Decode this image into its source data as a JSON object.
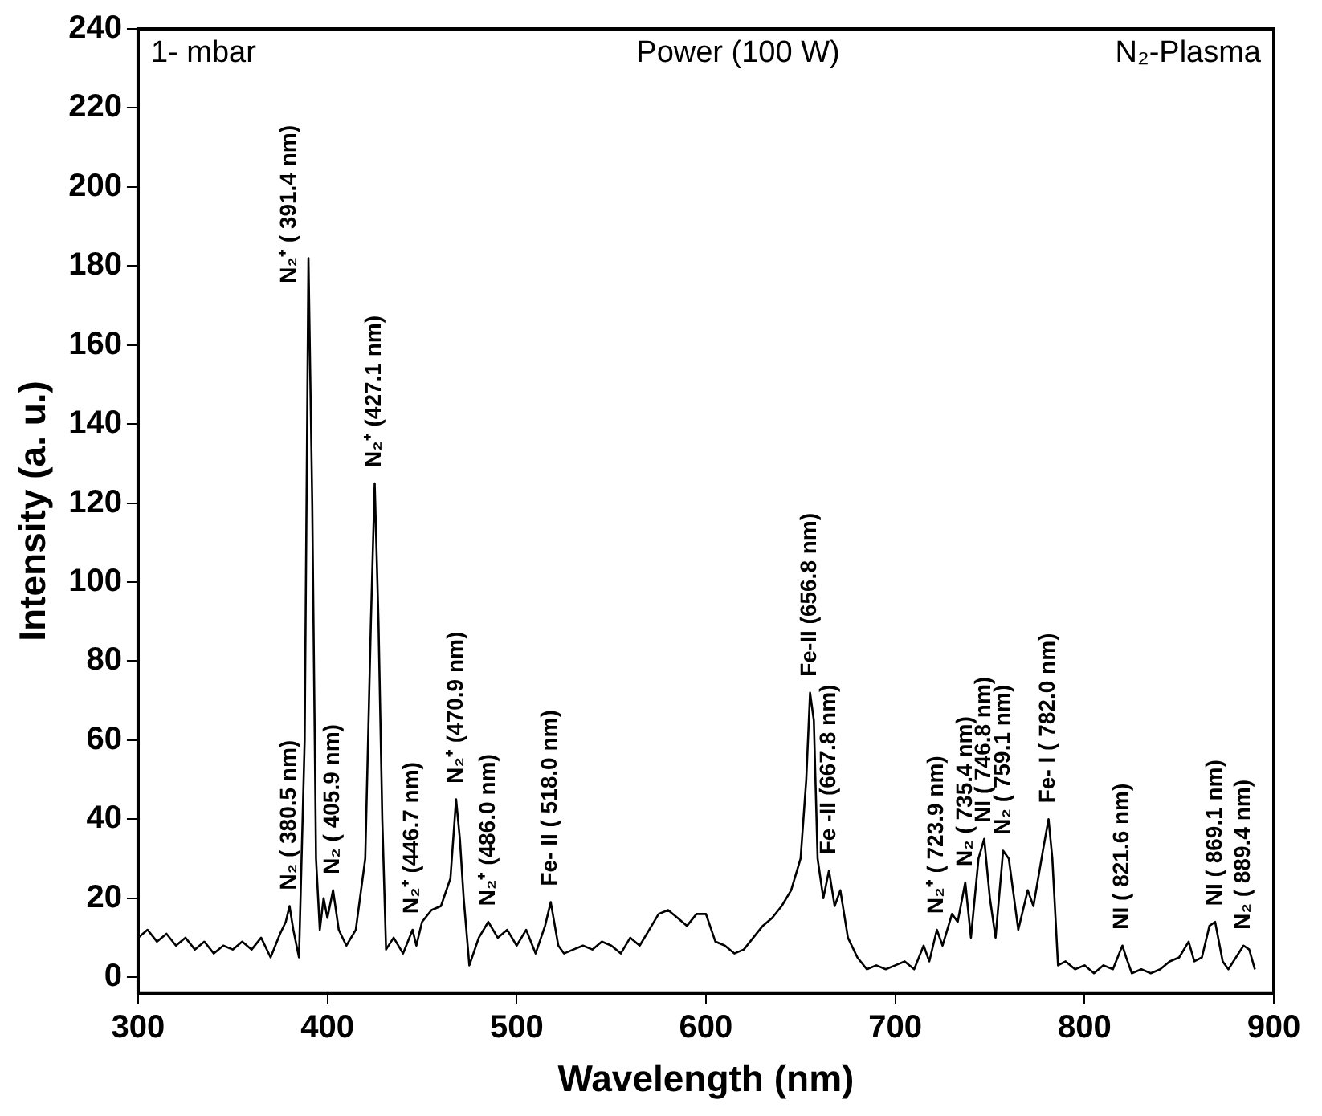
{
  "chart_data": {
    "type": "line",
    "xlabel": "Wavelength (nm)",
    "ylabel": "Intensity (a. u.)",
    "x": [
      300,
      305,
      310,
      315,
      320,
      325,
      330,
      335,
      340,
      345,
      350,
      355,
      360,
      365,
      370,
      375,
      378,
      380,
      382,
      385,
      388,
      390,
      392,
      394,
      396,
      398,
      400,
      403,
      406,
      410,
      415,
      420,
      423,
      425,
      427,
      429,
      431,
      435,
      440,
      445,
      447,
      450,
      455,
      460,
      465,
      468,
      470,
      472,
      475,
      480,
      485,
      490,
      495,
      500,
      505,
      510,
      515,
      518,
      522,
      525,
      530,
      535,
      540,
      545,
      550,
      555,
      560,
      565,
      570,
      575,
      580,
      585,
      590,
      595,
      600,
      605,
      610,
      615,
      620,
      625,
      630,
      635,
      640,
      645,
      650,
      653,
      655,
      657,
      659,
      662,
      665,
      668,
      671,
      675,
      680,
      685,
      690,
      695,
      700,
      705,
      710,
      715,
      718,
      722,
      725,
      730,
      733,
      737,
      740,
      744,
      747,
      750,
      753,
      757,
      760,
      765,
      770,
      773,
      778,
      781,
      783,
      786,
      790,
      795,
      800,
      805,
      810,
      815,
      820,
      822,
      825,
      830,
      835,
      840,
      845,
      850,
      855,
      858,
      862,
      866,
      869,
      873,
      876,
      880,
      884,
      887,
      890
    ],
    "series": [
      {
        "color": "#000000",
        "values": [
          10,
          12,
          9,
          11,
          8,
          10,
          7,
          9,
          6,
          8,
          7,
          9,
          7,
          10,
          5,
          11,
          14,
          18,
          12,
          5,
          60,
          182,
          120,
          30,
          12,
          20,
          15,
          22,
          12,
          8,
          12,
          30,
          90,
          125,
          90,
          40,
          7,
          10,
          6,
          12,
          8,
          14,
          17,
          18,
          25,
          45,
          35,
          20,
          3,
          10,
          14,
          10,
          12,
          8,
          12,
          6,
          13,
          19,
          8,
          6,
          7,
          8,
          7,
          9,
          8,
          6,
          10,
          8,
          12,
          16,
          17,
          15,
          13,
          16,
          16,
          9,
          8,
          6,
          7,
          10,
          13,
          15,
          18,
          22,
          30,
          50,
          72,
          65,
          30,
          20,
          27,
          18,
          22,
          10,
          5,
          2,
          3,
          2,
          3,
          4,
          2,
          8,
          4,
          12,
          8,
          16,
          14,
          24,
          10,
          30,
          35,
          20,
          10,
          32,
          30,
          12,
          22,
          18,
          32,
          40,
          30,
          3,
          4,
          2,
          3,
          1,
          3,
          2,
          8,
          5,
          1,
          2,
          1,
          2,
          4,
          5,
          9,
          4,
          5,
          13,
          14,
          4,
          2,
          5,
          8,
          7,
          2
        ]
      }
    ],
    "xlim": [
      300,
      900
    ],
    "xticks": [
      300,
      400,
      500,
      600,
      700,
      800,
      900
    ],
    "ylim": [
      -4,
      240
    ],
    "yticks": [
      0,
      20,
      40,
      60,
      80,
      100,
      120,
      140,
      160,
      180,
      200,
      220,
      240
    ],
    "annotations": [
      "1- mbar",
      "Power (100 W)",
      "N₂-Plasma",
      {
        "text": "N₂ ( 380.5 nm)",
        "x": 380,
        "y": 18
      },
      {
        "text": "N₂⁺ ( 391.4 nm)",
        "x": 390,
        "y": 182
      },
      {
        "text": "N₂ ( 405.9 nm)",
        "x": 403,
        "y": 22
      },
      {
        "text": "N₂⁺ (427.1 nm)",
        "x": 425,
        "y": 125
      },
      {
        "text": "N₂⁺ (446.7 nm)",
        "x": 445,
        "y": 12
      },
      {
        "text": "N₂⁺ (470.9 nm)",
        "x": 468,
        "y": 45
      },
      {
        "text": "N₂⁺ (486.0 nm)",
        "x": 485,
        "y": 14
      },
      {
        "text": "Fe- II ( 518.0 nm)",
        "x": 518,
        "y": 19
      },
      {
        "text": "Fe-II (656.8 nm)",
        "x": 655,
        "y": 72
      },
      {
        "text": "Fe -II (667.8 nm)",
        "x": 665,
        "y": 27
      },
      {
        "text": "N₂⁺ ( 723.9 nm)",
        "x": 722,
        "y": 12
      },
      {
        "text": "N₂ ( 735.4 nm)",
        "x": 737,
        "y": 24
      },
      {
        "text": "NI ( 746.8 nm)",
        "x": 747,
        "y": 35
      },
      {
        "text": "N₂ ( 759.1 nm)",
        "x": 757,
        "y": 32
      },
      {
        "text": "Fe- I ( 782.0 nm)",
        "x": 781,
        "y": 40
      },
      {
        "text": "NI ( 821.6 nm)",
        "x": 820,
        "y": 8
      },
      {
        "text": "NI ( 869.1 nm)",
        "x": 869,
        "y": 14
      },
      {
        "text": "N₂ ( 889.4 nm)",
        "x": 884,
        "y": 8
      }
    ]
  }
}
